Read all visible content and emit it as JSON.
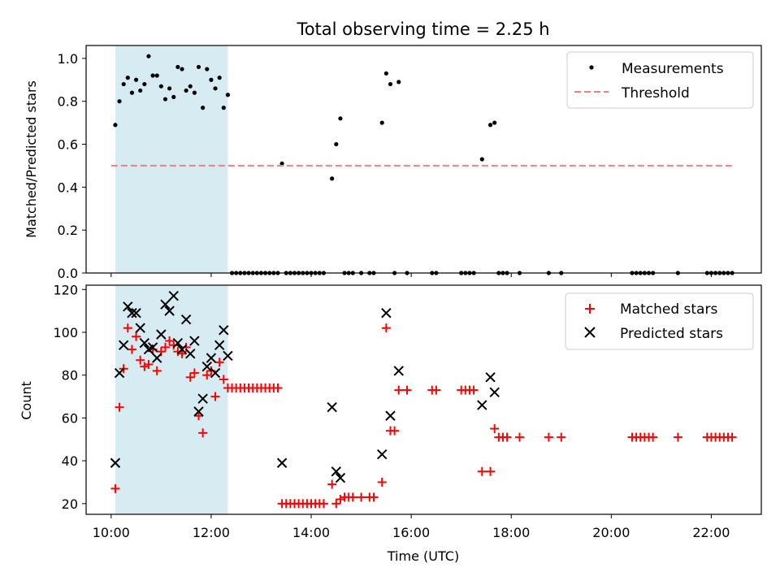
{
  "chart_data": [
    {
      "type": "scatter",
      "title": "Total observing time = 2.25 h",
      "xlabel": "",
      "ylabel": "Matched/Predicted stars",
      "xlim": [
        "09:30",
        "23:00"
      ],
      "ylim": [
        0,
        1.06
      ],
      "yticks": [
        "0.0",
        "0.2",
        "0.4",
        "0.6",
        "0.8",
        "1.0"
      ],
      "ytick_values": [
        0,
        0.2,
        0.4,
        0.6,
        0.8,
        1.0
      ],
      "legend_position": "top-right",
      "highlight_span": [
        "10:05",
        "12:20"
      ],
      "highlight_color": "#add8e6",
      "series": [
        {
          "name": "Measurements",
          "color": "#000000",
          "marker": "dot",
          "x": [
            "10:05",
            "10:10",
            "10:15",
            "10:20",
            "10:25",
            "10:30",
            "10:35",
            "10:40",
            "10:45",
            "10:50",
            "10:55",
            "11:00",
            "11:05",
            "11:10",
            "11:15",
            "11:20",
            "11:25",
            "11:30",
            "11:35",
            "11:40",
            "11:45",
            "11:50",
            "11:55",
            "12:00",
            "12:05",
            "12:10",
            "12:15",
            "12:20",
            "13:25",
            "14:25",
            "14:30",
            "14:35",
            "15:25",
            "15:30",
            "15:35",
            "15:45",
            "17:25",
            "17:35",
            "17:40"
          ],
          "y": [
            0.69,
            0.8,
            0.88,
            0.91,
            0.84,
            0.9,
            0.85,
            0.88,
            1.01,
            0.92,
            0.92,
            0.87,
            0.81,
            0.86,
            0.82,
            0.96,
            0.95,
            0.85,
            0.87,
            0.84,
            0.96,
            0.77,
            0.95,
            0.9,
            0.86,
            0.91,
            0.77,
            0.83,
            0.51,
            0.44,
            0.6,
            0.72,
            0.7,
            0.93,
            0.88,
            0.89,
            0.53,
            0.69,
            0.7
          ]
        },
        {
          "name": "Measurements-zero",
          "color": "#000000",
          "marker": "dot",
          "x": [
            "12:25",
            "12:30",
            "12:35",
            "12:40",
            "12:45",
            "12:50",
            "12:55",
            "13:00",
            "13:05",
            "13:10",
            "13:15",
            "13:20",
            "13:30",
            "13:35",
            "13:40",
            "13:45",
            "13:50",
            "13:55",
            "14:00",
            "14:05",
            "14:10",
            "14:15",
            "14:40",
            "14:45",
            "14:50",
            "15:00",
            "15:10",
            "15:15",
            "15:40",
            "15:55",
            "16:25",
            "16:30",
            "17:00",
            "17:05",
            "17:10",
            "17:15",
            "17:45",
            "17:50",
            "17:55",
            "18:10",
            "18:45",
            "19:00",
            "20:25",
            "20:30",
            "20:35",
            "20:40",
            "20:45",
            "20:50",
            "21:20",
            "21:55",
            "22:00",
            "22:05",
            "22:10",
            "22:15",
            "22:20",
            "22:25"
          ],
          "y": [
            0,
            0,
            0,
            0,
            0,
            0,
            0,
            0,
            0,
            0,
            0,
            0,
            0,
            0,
            0,
            0,
            0,
            0,
            0,
            0,
            0,
            0,
            0,
            0,
            0,
            0,
            0,
            0,
            0,
            0,
            0,
            0,
            0,
            0,
            0,
            0,
            0,
            0,
            0,
            0,
            0,
            0,
            0,
            0,
            0,
            0,
            0,
            0,
            0,
            0,
            0,
            0,
            0,
            0,
            0,
            0
          ]
        },
        {
          "name": "Threshold",
          "color": "#f08080",
          "marker": "dashed-line",
          "x": [
            "10:00",
            "22:25"
          ],
          "y": [
            0.5,
            0.5
          ]
        }
      ],
      "legend": [
        "Measurements",
        "Threshold"
      ]
    },
    {
      "type": "scatter",
      "title": "",
      "xlabel": "Time (UTC)",
      "ylabel": "Count",
      "xlim": [
        "09:30",
        "23:00"
      ],
      "ylim": [
        15,
        122
      ],
      "xticks": [
        "10:00",
        "12:00",
        "14:00",
        "16:00",
        "18:00",
        "20:00",
        "22:00"
      ],
      "yticks": [
        "20",
        "40",
        "60",
        "80",
        "100",
        "120"
      ],
      "ytick_values": [
        20,
        40,
        60,
        80,
        100,
        120
      ],
      "legend_position": "top-right",
      "highlight_span": [
        "10:05",
        "12:20"
      ],
      "highlight_color": "#add8e6",
      "series": [
        {
          "name": "Matched stars",
          "color": "#ff0000",
          "marker": "plus",
          "x": [
            "10:05",
            "10:10",
            "10:15",
            "10:20",
            "10:25",
            "10:30",
            "10:35",
            "10:40",
            "10:45",
            "10:50",
            "10:55",
            "11:00",
            "11:05",
            "11:10",
            "11:15",
            "11:20",
            "11:25",
            "11:30",
            "11:35",
            "11:40",
            "11:45",
            "11:50",
            "11:55",
            "12:00",
            "12:05",
            "12:10",
            "12:15",
            "12:20",
            "12:25",
            "12:30",
            "12:35",
            "12:40",
            "12:45",
            "12:50",
            "12:55",
            "13:00",
            "13:05",
            "13:10",
            "13:15",
            "13:20",
            "13:25",
            "13:30",
            "13:35",
            "13:40",
            "13:45",
            "13:50",
            "13:55",
            "14:00",
            "14:05",
            "14:10",
            "14:15",
            "14:25",
            "14:30",
            "14:35",
            "14:40",
            "14:45",
            "14:50",
            "15:00",
            "15:10",
            "15:15",
            "15:25",
            "15:30",
            "15:35",
            "15:40",
            "15:45",
            "15:55",
            "16:25",
            "16:30",
            "17:00",
            "17:05",
            "17:10",
            "17:15",
            "17:25",
            "17:35",
            "17:40",
            "17:45",
            "17:50",
            "17:55",
            "18:10",
            "18:45",
            "19:00",
            "20:25",
            "20:30",
            "20:35",
            "20:40",
            "20:45",
            "20:50",
            "21:20",
            "21:55",
            "22:00",
            "22:05",
            "22:10",
            "22:15",
            "22:20",
            "22:25"
          ],
          "y": [
            27,
            65,
            83,
            102,
            92,
            98,
            87,
            84,
            85,
            92,
            82,
            91,
            93,
            96,
            94,
            91,
            90,
            93,
            79,
            81,
            61,
            53,
            80,
            82,
            70,
            86,
            78,
            74,
            74,
            74,
            74,
            74,
            74,
            74,
            74,
            74,
            74,
            74,
            74,
            74,
            20,
            20,
            20,
            20,
            20,
            20,
            20,
            20,
            20,
            20,
            20,
            29,
            20,
            22,
            23,
            23,
            23,
            23,
            23,
            23,
            30,
            102,
            54,
            54,
            73,
            73,
            73,
            73,
            73,
            73,
            73,
            73,
            35,
            35,
            55,
            51,
            51,
            51,
            51,
            51,
            51,
            51,
            51,
            51,
            51,
            51,
            51,
            51,
            51,
            51,
            51,
            51,
            51,
            51,
            51
          ]
        },
        {
          "name": "Predicted stars",
          "color": "#000000",
          "marker": "x",
          "x": [
            "10:05",
            "10:10",
            "10:15",
            "10:20",
            "10:25",
            "10:30",
            "10:35",
            "10:40",
            "10:45",
            "10:50",
            "10:55",
            "11:00",
            "11:05",
            "11:10",
            "11:15",
            "11:20",
            "11:25",
            "11:30",
            "11:35",
            "11:40",
            "11:45",
            "11:50",
            "11:55",
            "12:00",
            "12:05",
            "12:10",
            "12:15",
            "12:20",
            "13:25",
            "14:25",
            "14:30",
            "14:35",
            "15:25",
            "15:30",
            "15:35",
            "15:45",
            "17:25",
            "17:35",
            "17:40"
          ],
          "y": [
            39,
            81,
            94,
            112,
            109,
            109,
            102,
            95,
            92,
            93,
            88,
            99,
            113,
            110,
            117,
            95,
            92,
            106,
            90,
            96,
            63,
            69,
            84,
            88,
            81,
            94,
            101,
            89,
            39,
            65,
            35,
            32,
            43,
            109,
            61,
            82,
            66,
            79,
            72
          ]
        }
      ],
      "legend": [
        "Matched stars",
        "Predicted stars"
      ]
    }
  ]
}
